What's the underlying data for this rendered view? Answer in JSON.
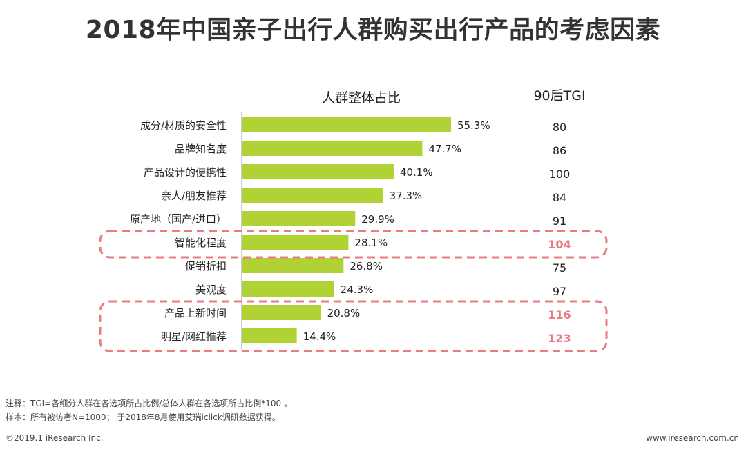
{
  "title": "2018年中国亲子出行人群购买出行产品的考虑因素",
  "chart_data": {
    "type": "bar",
    "orientation": "horizontal",
    "column_headers": {
      "bar_column": "人群整体占比",
      "tgi_column": "90后TGI"
    },
    "categories": [
      "成分/材质的安全性",
      "品牌知名度",
      "产品设计的便携性",
      "亲人/朋友推荐",
      "原产地（国产/进口）",
      "智能化程度",
      "促销折扣",
      "美观度",
      "产品上新时间",
      "明星/网红推荐"
    ],
    "values": [
      55.3,
      47.7,
      40.1,
      37.3,
      29.9,
      28.1,
      26.8,
      24.3,
      20.8,
      14.4
    ],
    "value_labels": [
      "55.3%",
      "47.7%",
      "40.1%",
      "37.3%",
      "29.9%",
      "28.1%",
      "26.8%",
      "24.3%",
      "20.8%",
      "14.4%"
    ],
    "tgi_values": [
      "80",
      "86",
      "100",
      "84",
      "91",
      "104",
      "75",
      "97",
      "116",
      "123"
    ],
    "highlighted": [
      false,
      false,
      false,
      false,
      false,
      true,
      false,
      false,
      true,
      true
    ],
    "xlim": [
      0,
      100
    ],
    "grid": false,
    "legend": "none",
    "colors": {
      "bar": "#b0d235",
      "highlight_box": "#e87c80",
      "highlight_text": "#e87c80",
      "axis": "#999999"
    }
  },
  "footer": {
    "note": "注释：TGI=各细分人群在各选项所占比例/总体人群在各选项所占比例*100 。",
    "sample": "样本：所有被访者N=1000； 于2018年8月使用艾瑞iclick调研数据获得。",
    "copyright": "©2019.1 iResearch Inc.",
    "website": "www.iresearch.com.cn"
  }
}
